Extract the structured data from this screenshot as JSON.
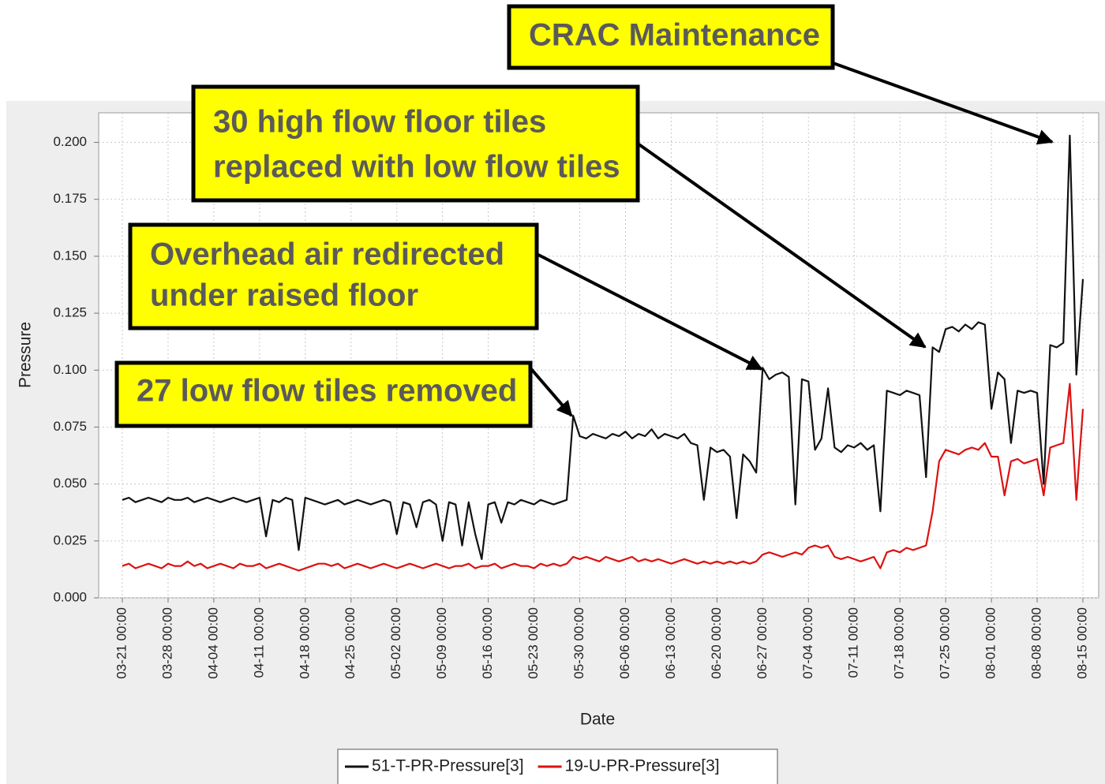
{
  "chart_data": {
    "type": "line",
    "x_label": "Date",
    "y_label": "Pressure",
    "categories": [
      "03-21 00:00",
      null,
      null,
      null,
      null,
      null,
      null,
      "03-28 00:00",
      null,
      null,
      null,
      null,
      null,
      null,
      "04-04 00:00",
      null,
      null,
      null,
      null,
      null,
      null,
      "04-11 00:00",
      null,
      null,
      null,
      null,
      null,
      null,
      "04-18 00:00",
      null,
      null,
      null,
      null,
      null,
      null,
      "04-25 00:00",
      null,
      null,
      null,
      null,
      null,
      null,
      "05-02 00:00",
      null,
      null,
      null,
      null,
      null,
      null,
      "05-09 00:00",
      null,
      null,
      null,
      null,
      null,
      null,
      "05-16 00:00",
      null,
      null,
      null,
      null,
      null,
      null,
      "05-23 00:00",
      null,
      null,
      null,
      null,
      null,
      null,
      "05-30 00:00",
      null,
      null,
      null,
      null,
      null,
      null,
      "06-06 00:00",
      null,
      null,
      null,
      null,
      null,
      null,
      "06-13 00:00",
      null,
      null,
      null,
      null,
      null,
      null,
      "06-20 00:00",
      null,
      null,
      null,
      null,
      null,
      null,
      "06-27 00:00",
      null,
      null,
      null,
      null,
      null,
      null,
      "07-04 00:00",
      null,
      null,
      null,
      null,
      null,
      null,
      "07-11 00:00",
      null,
      null,
      null,
      null,
      null,
      null,
      "07-18 00:00",
      null,
      null,
      null,
      null,
      null,
      null,
      "07-25 00:00",
      null,
      null,
      null,
      null,
      null,
      null,
      "08-01 00:00",
      null,
      null,
      null,
      null,
      null,
      null,
      "08-08 00:00",
      null,
      null,
      null,
      null,
      null,
      null,
      "08-15 00:00"
    ],
    "series": [
      {
        "name": "51-T-PR-Pressure[3]",
        "color": "#111111",
        "values": [
          0.043,
          0.044,
          0.042,
          0.043,
          0.044,
          0.043,
          0.042,
          0.044,
          0.043,
          0.043,
          0.044,
          0.042,
          0.043,
          0.044,
          0.043,
          0.042,
          0.043,
          0.044,
          0.043,
          0.042,
          0.043,
          0.044,
          0.027,
          0.043,
          0.042,
          0.044,
          0.043,
          0.021,
          0.044,
          0.043,
          0.042,
          0.041,
          0.042,
          0.043,
          0.041,
          0.042,
          0.043,
          0.042,
          0.041,
          0.042,
          0.043,
          0.042,
          0.028,
          0.042,
          0.041,
          0.031,
          0.042,
          0.043,
          0.041,
          0.025,
          0.042,
          0.041,
          0.023,
          0.042,
          0.028,
          0.017,
          0.041,
          0.042,
          0.033,
          0.042,
          0.041,
          0.043,
          0.042,
          0.041,
          0.043,
          0.042,
          0.041,
          0.042,
          0.043,
          0.08,
          0.071,
          0.07,
          0.072,
          0.071,
          0.07,
          0.072,
          0.071,
          0.073,
          0.07,
          0.072,
          0.071,
          0.074,
          0.07,
          0.072,
          0.071,
          0.07,
          0.072,
          0.068,
          0.067,
          0.043,
          0.066,
          0.064,
          0.065,
          0.062,
          0.035,
          0.063,
          0.06,
          0.055,
          0.101,
          0.096,
          0.098,
          0.099,
          0.097,
          0.041,
          0.096,
          0.095,
          0.065,
          0.07,
          0.092,
          0.066,
          0.064,
          0.067,
          0.066,
          0.068,
          0.065,
          0.067,
          0.038,
          0.091,
          0.09,
          0.089,
          0.091,
          0.09,
          0.089,
          0.053,
          0.11,
          0.108,
          0.118,
          0.119,
          0.117,
          0.12,
          0.118,
          0.121,
          0.12,
          0.083,
          0.099,
          0.096,
          0.068,
          0.091,
          0.09,
          0.091,
          0.09,
          0.05,
          0.111,
          0.11,
          0.112,
          0.203,
          0.098,
          0.14
        ]
      },
      {
        "name": "19-U-PR-Pressure[3]",
        "color": "#dd1111",
        "values": [
          0.014,
          0.015,
          0.013,
          0.014,
          0.015,
          0.014,
          0.013,
          0.015,
          0.014,
          0.014,
          0.016,
          0.014,
          0.015,
          0.013,
          0.014,
          0.015,
          0.014,
          0.013,
          0.015,
          0.014,
          0.014,
          0.015,
          0.013,
          0.014,
          0.015,
          0.014,
          0.013,
          0.012,
          0.013,
          0.014,
          0.015,
          0.015,
          0.014,
          0.015,
          0.013,
          0.014,
          0.015,
          0.014,
          0.013,
          0.014,
          0.015,
          0.014,
          0.013,
          0.014,
          0.015,
          0.014,
          0.013,
          0.014,
          0.015,
          0.014,
          0.013,
          0.014,
          0.014,
          0.015,
          0.013,
          0.014,
          0.014,
          0.015,
          0.013,
          0.014,
          0.015,
          0.014,
          0.014,
          0.013,
          0.015,
          0.014,
          0.015,
          0.014,
          0.015,
          0.018,
          0.017,
          0.018,
          0.017,
          0.016,
          0.018,
          0.017,
          0.016,
          0.017,
          0.018,
          0.016,
          0.017,
          0.016,
          0.017,
          0.016,
          0.015,
          0.016,
          0.017,
          0.016,
          0.015,
          0.016,
          0.015,
          0.016,
          0.015,
          0.016,
          0.015,
          0.016,
          0.015,
          0.016,
          0.019,
          0.02,
          0.019,
          0.018,
          0.019,
          0.02,
          0.019,
          0.022,
          0.023,
          0.022,
          0.023,
          0.018,
          0.017,
          0.018,
          0.017,
          0.016,
          0.017,
          0.018,
          0.013,
          0.02,
          0.021,
          0.02,
          0.022,
          0.021,
          0.022,
          0.023,
          0.038,
          0.06,
          0.065,
          0.064,
          0.063,
          0.065,
          0.066,
          0.065,
          0.068,
          0.062,
          0.062,
          0.045,
          0.06,
          0.061,
          0.059,
          0.06,
          0.061,
          0.045,
          0.066,
          0.067,
          0.068,
          0.094,
          0.043,
          0.083
        ]
      }
    ],
    "ylim": [
      0,
      0.213
    ],
    "yticks": [
      {
        "value": 0,
        "label": "0.000"
      },
      0.025,
      {
        "value": 0.05,
        "label": "0.050"
      },
      0.075,
      {
        "value": 0.1,
        "label": "0.100"
      },
      0.125,
      {
        "value": 0.15,
        "label": "0.150"
      },
      0.175,
      {
        "value": 0.2,
        "label": "0.200"
      }
    ],
    "grid": true,
    "legend": "bottom",
    "annotations": [
      {
        "text": [
          "CRAC Maintenance"
        ]
      },
      {
        "text": [
          "30 high flow floor tiles",
          "replaced with low flow tiles"
        ]
      },
      {
        "text": [
          "Overhead air redirected",
          "under raised floor"
        ]
      },
      {
        "text": [
          "27 low flow tiles removed"
        ]
      }
    ]
  }
}
